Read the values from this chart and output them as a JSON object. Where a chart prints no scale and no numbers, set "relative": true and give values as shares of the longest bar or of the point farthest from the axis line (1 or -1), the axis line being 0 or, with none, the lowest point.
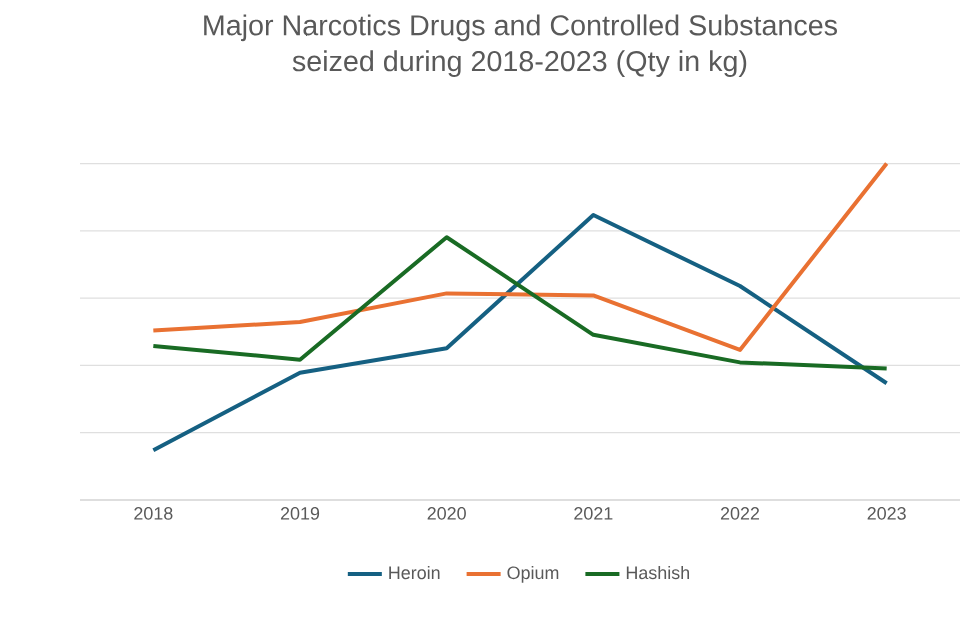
{
  "chart_data": {
    "type": "line",
    "title": "Major Narcotics Drugs and Controlled Substances seized during 2018-2023 (Qty in kg)",
    "categories": [
      "2018",
      "2019",
      "2020",
      "2021",
      "2022",
      "2023"
    ],
    "relative": true,
    "grid": "y",
    "legend": "bottom",
    "marker": "none",
    "line_style": "solid",
    "series": [
      {
        "name": "Heroin",
        "color": "#156082",
        "values": [
          0.148,
          0.378,
          0.451,
          0.847,
          0.636,
          0.347
        ]
      },
      {
        "name": "Opium",
        "color": "#e97132",
        "values": [
          0.504,
          0.529,
          0.614,
          0.608,
          0.446,
          1
        ]
      },
      {
        "name": "Hashish",
        "color": "#196b24",
        "values": [
          0.458,
          0.417,
          0.781,
          0.491,
          0.409,
          0.391
        ]
      }
    ]
  }
}
